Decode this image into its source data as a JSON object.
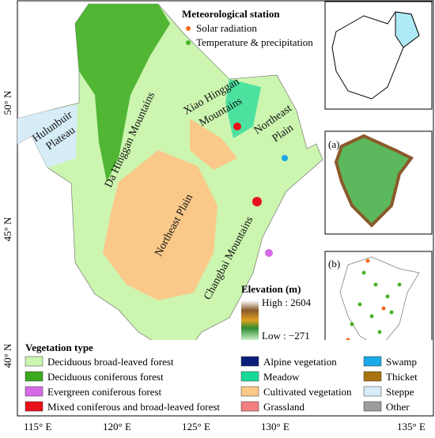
{
  "station_legend": {
    "title": "Meteorological station",
    "items": [
      {
        "name": "Solar radiation",
        "color": "#f26b1d"
      },
      {
        "name": "Temperature & precipitation",
        "color": "#49b32a"
      }
    ]
  },
  "regions": {
    "hulunbuir": [
      "Hulunbuir",
      "Plateau"
    ],
    "da_hinggan": "Da Hinggan Mountains",
    "xiao_hinggan": [
      "Xiao Hinggan",
      "Mountains"
    ],
    "northeast_plain_ne": [
      "Northeast",
      "Plain"
    ],
    "northeast_plain": "Northeast Plain",
    "changbai": "Changbai Mountains"
  },
  "elevation": {
    "title": "Elevation (m)",
    "high": "High : 2604",
    "low": "Low : −271"
  },
  "insets": {
    "a": "(a)",
    "b": "(b)"
  },
  "vegetation_legend": {
    "title": "Vegetation type",
    "items": [
      {
        "name": "Deciduous broad-leaved forest",
        "color": "#ccf5b0"
      },
      {
        "name": "Deciduous coniferous forest",
        "color": "#3aaa1e"
      },
      {
        "name": "Evergreen coniferous forest",
        "color": "#d66ae6"
      },
      {
        "name": "Mixed coniferous and broad-leaved forest",
        "color": "#e8101a"
      },
      {
        "name": "Alpine vegetation",
        "color": "#0b1f7a"
      },
      {
        "name": "Meadow",
        "color": "#17d99a"
      },
      {
        "name": "Cultivated vegetation",
        "color": "#fac98a"
      },
      {
        "name": "Grassland",
        "color": "#f28080"
      },
      {
        "name": "Swamp",
        "color": "#1aa8e6"
      },
      {
        "name": "Thicket",
        "color": "#a8720e"
      },
      {
        "name": "Steppe",
        "color": "#d6ecf7"
      },
      {
        "name": "Other",
        "color": "#9c9c9c"
      }
    ]
  },
  "axes": {
    "x": [
      "115° E",
      "120° E",
      "125° E",
      "130° E",
      "135° E"
    ],
    "y": [
      "40° N",
      "45° N",
      "50° N"
    ]
  }
}
